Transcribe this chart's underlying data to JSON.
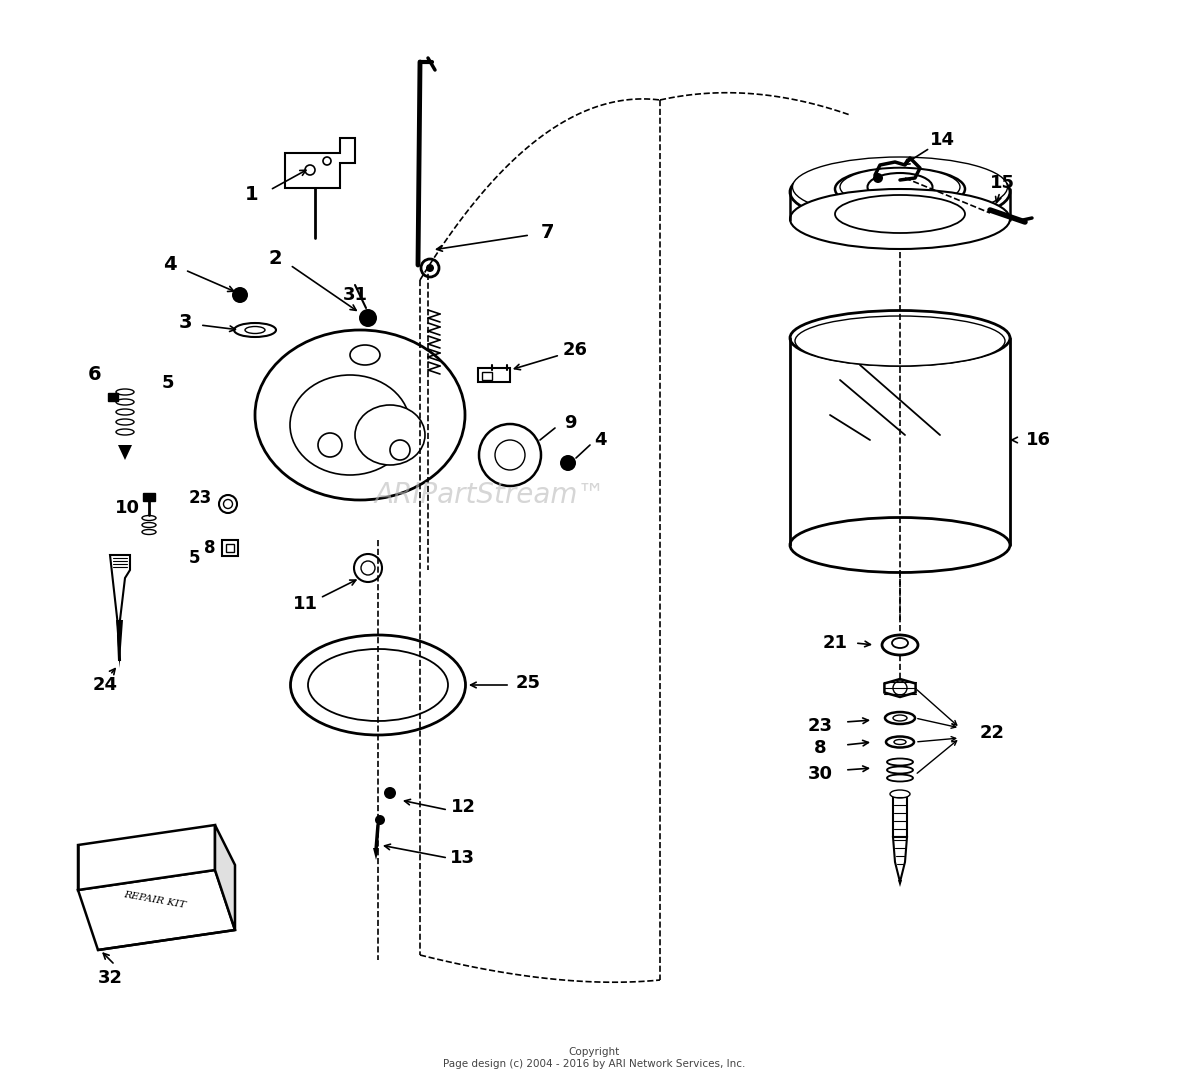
{
  "background_color": "#ffffff",
  "copyright_text": "Copyright\nPage design (c) 2004 - 2016 by ARI Network Services, Inc.",
  "watermark": "ARIPartStream™",
  "fig_width": 11.89,
  "fig_height": 10.83,
  "dpi": 100
}
